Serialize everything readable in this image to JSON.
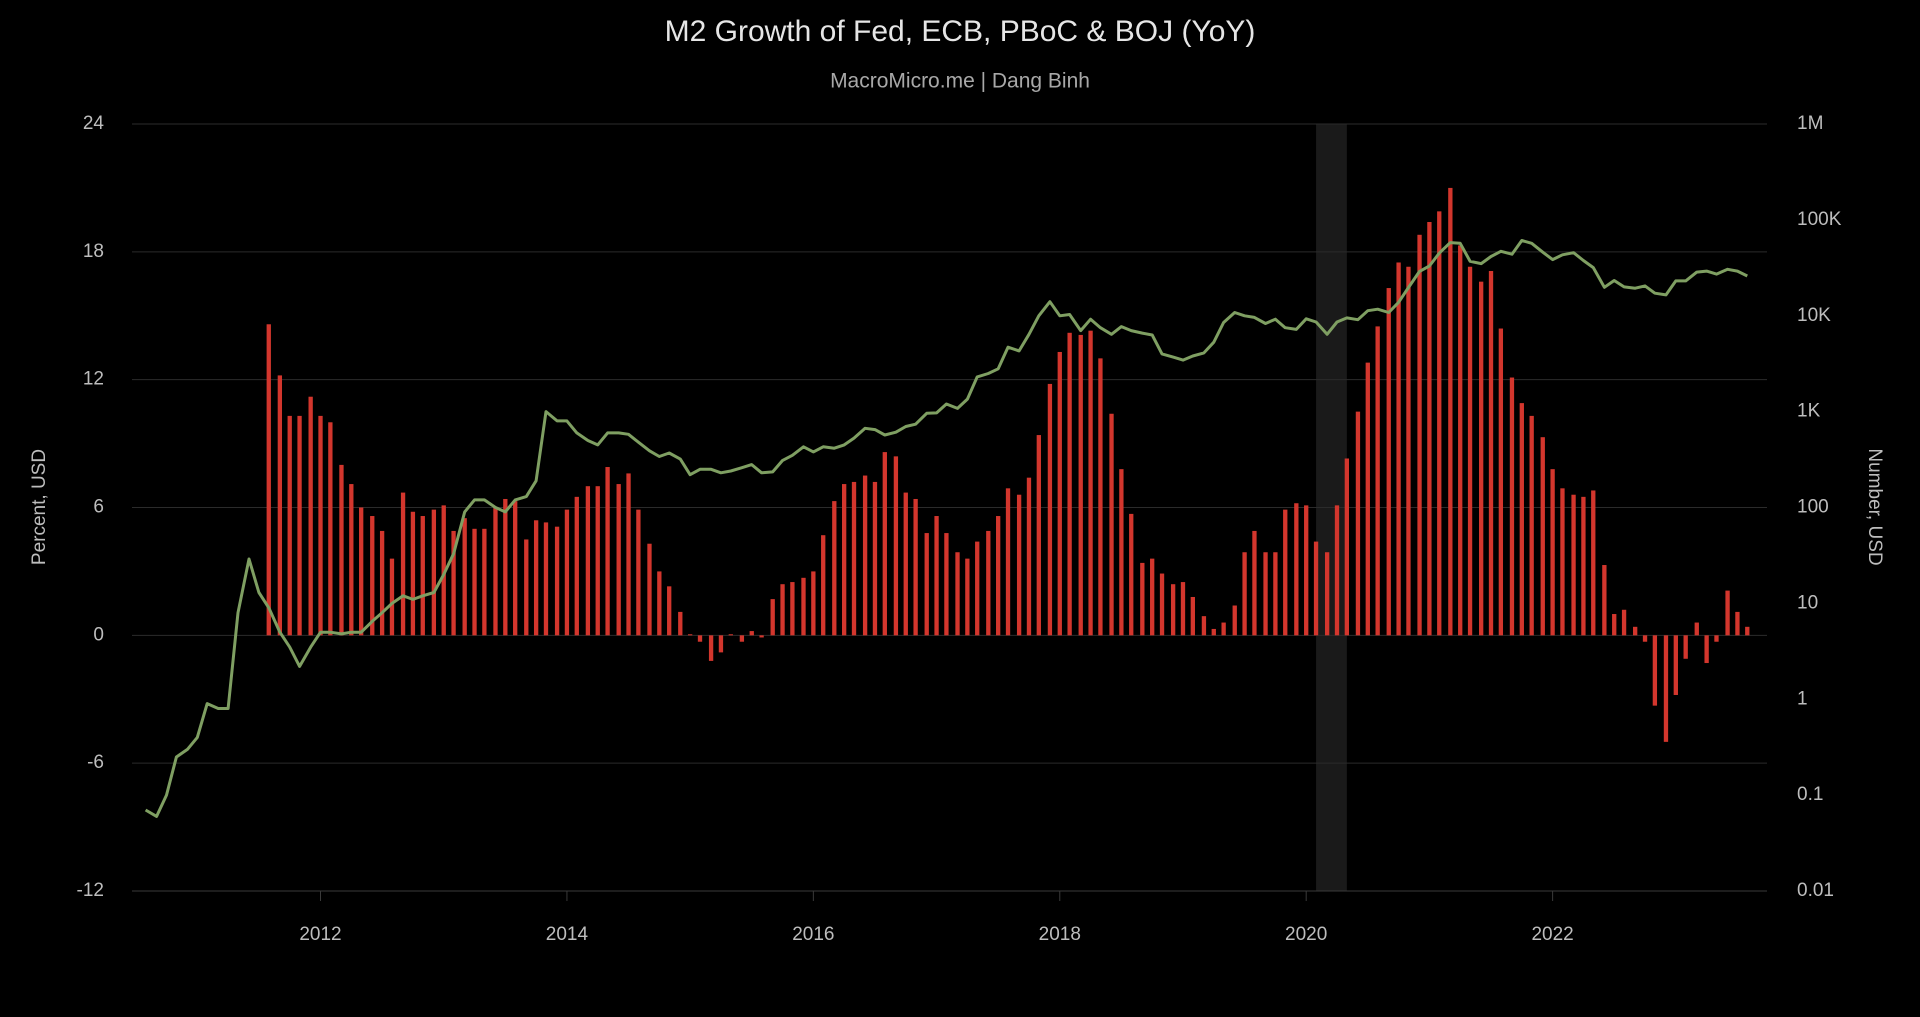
{
  "chart_data": {
    "type": "combo",
    "title": "M2 Growth of Fed, ECB, PBoC & BOJ (YoY)",
    "subtitle": "MacroMicro.me | Dang Binh",
    "y_label": "Percent, USD",
    "y2_label": "Number, USD",
    "xlim": [
      2010.47,
      2023.74
    ],
    "xticks": [
      2012,
      2014,
      2016,
      2018,
      2020,
      2022
    ],
    "ylim": [
      -12,
      24
    ],
    "yticks": [
      24,
      18,
      12,
      6,
      0,
      -6,
      -12
    ],
    "y2lim": [
      0.01,
      1000000
    ],
    "y2_log": true,
    "y2ticks": [
      {
        "value": 1000000,
        "label": "1M"
      },
      {
        "value": 100000,
        "label": "100K"
      },
      {
        "value": 10000,
        "label": "10K"
      },
      {
        "value": 1000,
        "label": "1K"
      },
      100,
      10,
      1,
      0.1,
      0.01
    ],
    "grid": true,
    "shaded_x": [
      2020.08,
      2020.33
    ],
    "x": [
      2010.58,
      2010.67,
      2010.75,
      2010.83,
      2010.92,
      2011,
      2011.08,
      2011.17,
      2011.25,
      2011.33,
      2011.42,
      2011.5,
      2011.58,
      2011.67,
      2011.75,
      2011.83,
      2011.92,
      2012,
      2012.08,
      2012.17,
      2012.25,
      2012.33,
      2012.42,
      2012.5,
      2012.58,
      2012.67,
      2012.75,
      2012.83,
      2012.92,
      2013,
      2013.08,
      2013.17,
      2013.25,
      2013.33,
      2013.42,
      2013.5,
      2013.58,
      2013.67,
      2013.75,
      2013.83,
      2013.92,
      2014,
      2014.08,
      2014.17,
      2014.25,
      2014.33,
      2014.42,
      2014.5,
      2014.58,
      2014.67,
      2014.75,
      2014.83,
      2014.92,
      2015,
      2015.08,
      2015.17,
      2015.25,
      2015.33,
      2015.42,
      2015.5,
      2015.58,
      2015.67,
      2015.75,
      2015.83,
      2015.92,
      2016,
      2016.08,
      2016.17,
      2016.25,
      2016.33,
      2016.42,
      2016.5,
      2016.58,
      2016.67,
      2016.75,
      2016.83,
      2016.92,
      2017,
      2017.08,
      2017.17,
      2017.25,
      2017.33,
      2017.42,
      2017.5,
      2017.58,
      2017.67,
      2017.75,
      2017.83,
      2017.92,
      2018,
      2018.08,
      2018.17,
      2018.25,
      2018.33,
      2018.42,
      2018.5,
      2018.58,
      2018.67,
      2018.75,
      2018.83,
      2018.92,
      2019,
      2019.08,
      2019.17,
      2019.25,
      2019.33,
      2019.42,
      2019.5,
      2019.58,
      2019.67,
      2019.75,
      2019.83,
      2019.92,
      2020,
      2020.08,
      2020.17,
      2020.25,
      2020.33,
      2020.42,
      2020.5,
      2020.58,
      2020.67,
      2020.75,
      2020.83,
      2020.92,
      2021,
      2021.08,
      2021.17,
      2021.25,
      2021.33,
      2021.42,
      2021.5,
      2021.58,
      2021.67,
      2021.75,
      2021.83,
      2021.92,
      2022,
      2022.08,
      2022.17,
      2022.25,
      2022.33,
      2022.42,
      2022.5,
      2022.58,
      2022.67,
      2022.75,
      2022.83,
      2022.92,
      2023,
      2023.08,
      2023.17,
      2023.25,
      2023.33,
      2023.42,
      2023.5,
      2023.58
    ],
    "series": [
      {
        "type": "bar",
        "color": "#d3362d",
        "values": [
          null,
          null,
          null,
          null,
          null,
          null,
          null,
          null,
          null,
          null,
          null,
          null,
          14.6,
          12.2,
          10.3,
          10.3,
          11.2,
          10.3,
          10.0,
          8.0,
          7.1,
          6.0,
          5.6,
          4.9,
          3.6,
          6.7,
          5.8,
          5.6,
          5.9,
          6.1,
          4.9,
          5.5,
          5.0,
          5.0,
          6.0,
          6.4,
          6.3,
          4.5,
          5.4,
          5.3,
          5.1,
          5.9,
          6.5,
          7.0,
          7.0,
          7.9,
          7.1,
          7.6,
          5.9,
          4.3,
          3.0,
          2.3,
          1.1,
          0.05,
          -0.3,
          -1.2,
          -0.8,
          0.05,
          -0.3,
          0.2,
          -0.1,
          1.7,
          2.4,
          2.5,
          2.7,
          3.0,
          4.7,
          6.3,
          7.1,
          7.2,
          7.5,
          7.2,
          8.6,
          8.4,
          6.7,
          6.4,
          4.8,
          5.6,
          4.8,
          3.9,
          3.6,
          4.4,
          4.9,
          5.6,
          6.9,
          6.6,
          7.4,
          9.4,
          11.8,
          13.3,
          14.2,
          14.1,
          14.3,
          13.0,
          10.4,
          7.8,
          5.7,
          3.4,
          3.6,
          2.9,
          2.4,
          2.5,
          1.8,
          0.9,
          0.3,
          0.6,
          1.4,
          3.9,
          4.9,
          3.9,
          3.9,
          5.9,
          6.2,
          6.1,
          4.4,
          3.9,
          6.1,
          8.3,
          10.5,
          12.8,
          14.5,
          16.3,
          17.5,
          17.3,
          18.8,
          19.4,
          19.9,
          21.0,
          18.3,
          17.3,
          16.6,
          17.1,
          14.4,
          12.1,
          10.9,
          10.3,
          9.3,
          7.8,
          6.9,
          6.6,
          6.5,
          6.8,
          3.3,
          1.0,
          1.2,
          0.4,
          -0.3,
          -3.3,
          -5.0,
          -2.8,
          -1.1,
          0.6,
          -1.3,
          -0.3,
          2.1,
          1.1,
          0.4
        ]
      },
      {
        "type": "line",
        "axis": "y2",
        "color": "#7f9f62",
        "values": [
          0.07,
          0.06,
          0.1,
          0.25,
          0.3,
          0.4,
          0.9,
          0.8,
          0.8,
          8,
          29,
          13,
          9,
          5,
          3.5,
          2.2,
          3.5,
          5,
          5,
          4.8,
          5,
          5,
          6.5,
          8,
          10,
          12,
          11,
          12,
          13,
          20,
          33,
          90,
          120,
          120,
          100,
          90,
          120,
          130,
          190,
          1000,
          800,
          800,
          600,
          500,
          450,
          600,
          600,
          580,
          480,
          390,
          340,
          370,
          320,
          220,
          250,
          250,
          230,
          240,
          260,
          280,
          230,
          235,
          310,
          350,
          430,
          380,
          430,
          415,
          450,
          530,
          670,
          650,
          570,
          610,
          700,
          740,
          960,
          970,
          1200,
          1080,
          1350,
          2300,
          2500,
          2800,
          4700,
          4300,
          6400,
          10000,
          14000,
          10000,
          10300,
          7000,
          9200,
          7500,
          6400,
          7700,
          7000,
          6600,
          6300,
          4000,
          3700,
          3450,
          3800,
          4100,
          5300,
          8500,
          10800,
          10000,
          9600,
          8300,
          9200,
          7500,
          7200,
          9300,
          8600,
          6400,
          8600,
          9500,
          9100,
          11300,
          11700,
          10800,
          13800,
          19700,
          29000,
          33000,
          45000,
          58000,
          57000,
          37000,
          35000,
          41500,
          47000,
          43800,
          61000,
          57000,
          46000,
          38500,
          43200,
          45500,
          37700,
          31800,
          19800,
          23300,
          20000,
          19400,
          20500,
          17200,
          16500,
          23100,
          23100,
          28500,
          29200,
          27200,
          30500,
          29200,
          26000
        ]
      }
    ]
  }
}
